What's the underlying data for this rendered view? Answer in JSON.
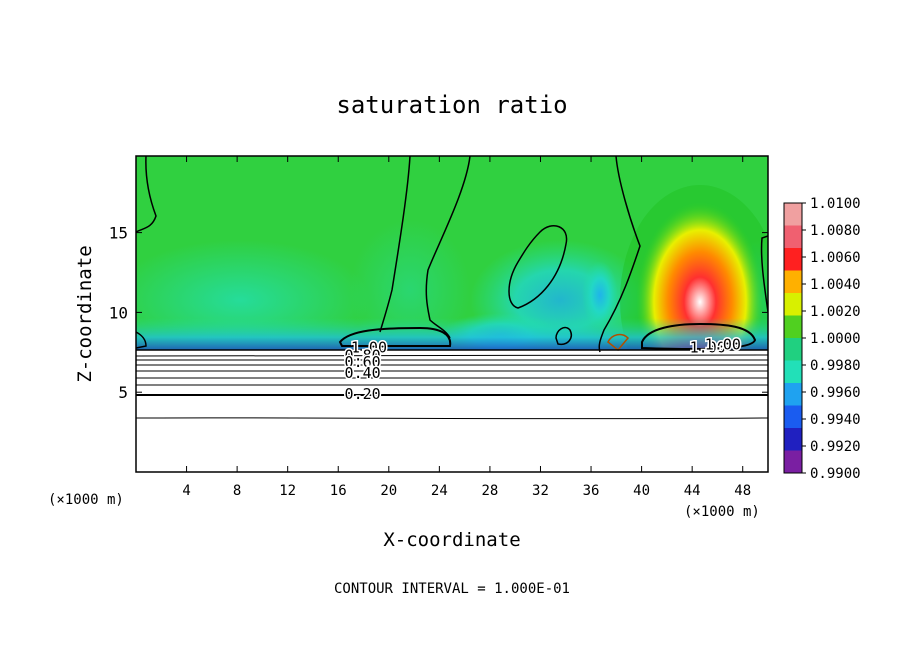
{
  "chart_data": {
    "type": "heatmap",
    "title": "saturation ratio",
    "xlabel": "X-coordinate",
    "ylabel": "Z-coordinate",
    "x_unit_left": "(×1000 m)",
    "x_unit_right": "(×1000 m)",
    "footer": "CONTOUR INTERVAL = 1.000E-01",
    "xlim": [
      0,
      50
    ],
    "ylim": [
      0,
      19.8
    ],
    "x_ticks": [
      4,
      8,
      12,
      16,
      20,
      24,
      28,
      32,
      36,
      40,
      44,
      48
    ],
    "y_ticks": [
      5,
      10,
      15
    ],
    "colorbar": {
      "levels": [
        "0.9900",
        "0.9920",
        "0.9940",
        "0.9960",
        "0.9980",
        "1.0000",
        "1.0020",
        "1.0040",
        "1.0060",
        "1.0080",
        "1.0100"
      ],
      "colors": [
        "#7a1fa2",
        "#2020c0",
        "#1a5cf0",
        "#1fa2f0",
        "#22e0b8",
        "#20d080",
        "#50d020",
        "#d8f000",
        "#ffb000",
        "#ff2020",
        "#f06070",
        "#f0a0a0"
      ]
    },
    "contour_labels": [
      {
        "text": "1.00",
        "x": 17.0,
        "z": 7.8
      },
      {
        "text": "0.80",
        "x": 16.5,
        "z": 7.3
      },
      {
        "text": "0.60",
        "x": 16.5,
        "z": 6.9
      },
      {
        "text": "0.40",
        "x": 16.5,
        "z": 6.2
      },
      {
        "text": "0.20",
        "x": 16.5,
        "z": 4.9
      },
      {
        "text": "1.00",
        "x": 43.8,
        "z": 7.8
      },
      {
        "text": "1.00",
        "x": 45.0,
        "z": 8.0
      }
    ],
    "contour_levels_below_cloud": [
      0.2,
      0.4,
      0.6,
      0.8,
      1.0
    ],
    "cloud_base_z": 7.8
  }
}
